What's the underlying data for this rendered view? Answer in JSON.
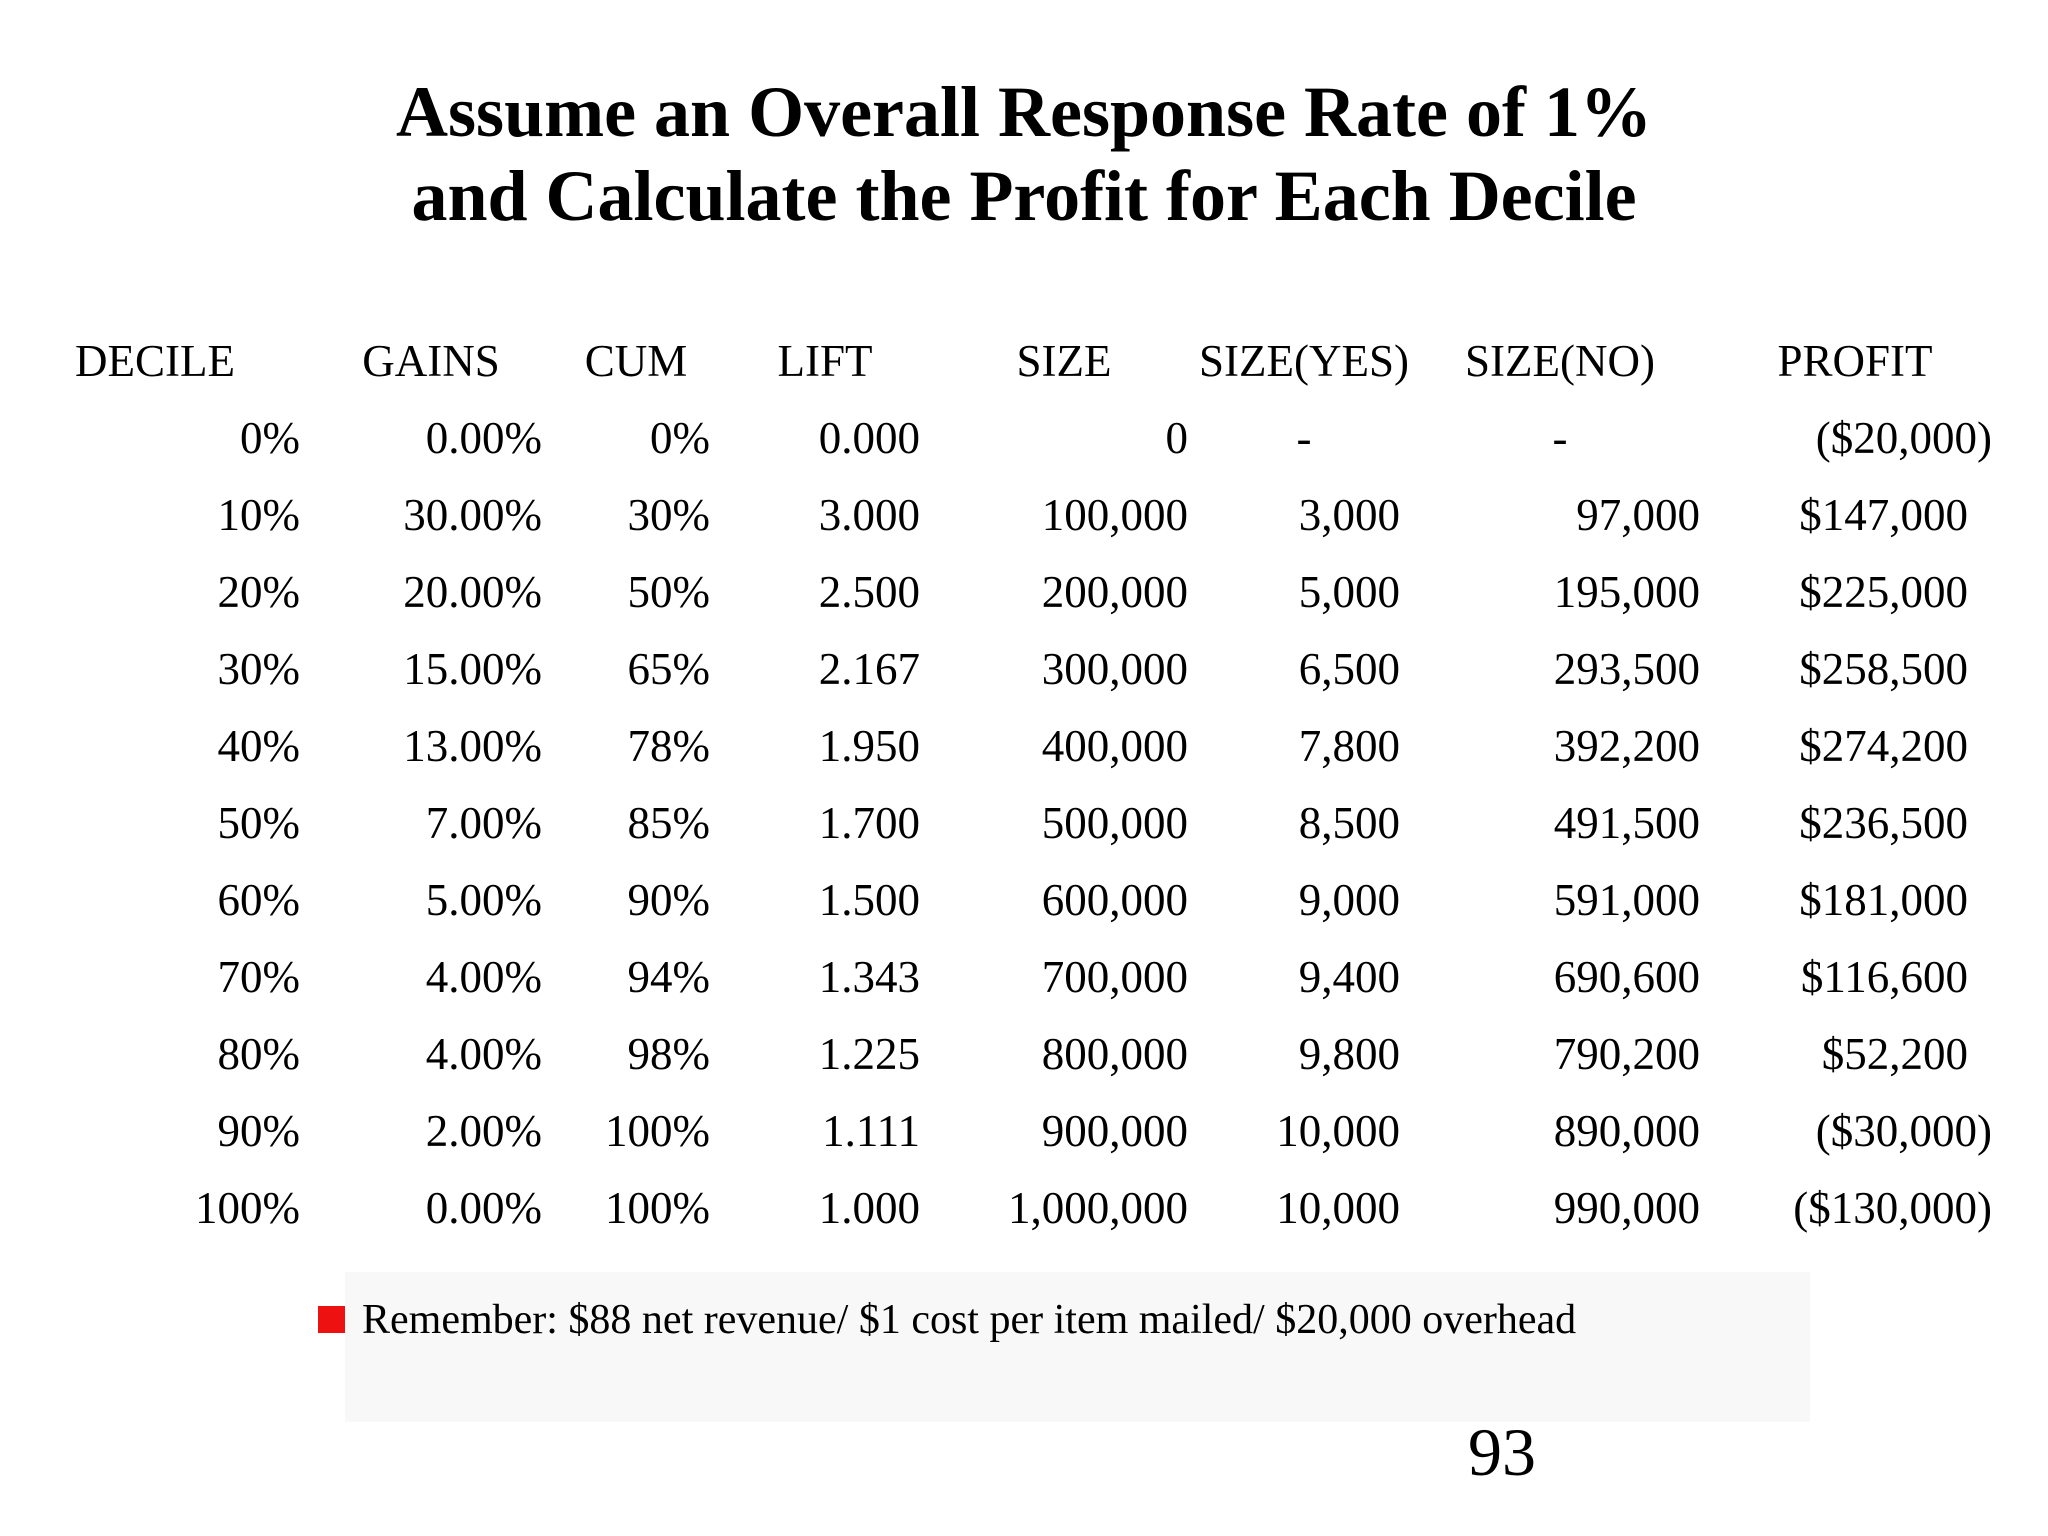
{
  "title": {
    "line1": "Assume an Overall Response Rate of 1%",
    "line2": "and Calculate the Profit for Each Decile"
  },
  "table": {
    "columns": [
      "DECILE",
      "GAINS",
      "CUM",
      "LIFT",
      "SIZE",
      "SIZE(YES)",
      "SIZE(NO)",
      "PROFIT"
    ],
    "rows": [
      [
        "0%",
        "0.00%",
        "0%",
        "0.000",
        "0",
        "-",
        "-",
        "($20,000)"
      ],
      [
        "10%",
        "30.00%",
        "30%",
        "3.000",
        "100,000",
        "3,000",
        "97,000",
        "$147,000"
      ],
      [
        "20%",
        "20.00%",
        "50%",
        "2.500",
        "200,000",
        "5,000",
        "195,000",
        "$225,000"
      ],
      [
        "30%",
        "15.00%",
        "65%",
        "2.167",
        "300,000",
        "6,500",
        "293,500",
        "$258,500"
      ],
      [
        "40%",
        "13.00%",
        "78%",
        "1.950",
        "400,000",
        "7,800",
        "392,200",
        "$274,200"
      ],
      [
        "50%",
        "7.00%",
        "85%",
        "1.700",
        "500,000",
        "8,500",
        "491,500",
        "$236,500"
      ],
      [
        "60%",
        "5.00%",
        "90%",
        "1.500",
        "600,000",
        "9,000",
        "591,000",
        "$181,000"
      ],
      [
        "70%",
        "4.00%",
        "94%",
        "1.343",
        "700,000",
        "9,400",
        "690,600",
        "$116,600"
      ],
      [
        "80%",
        "4.00%",
        "98%",
        "1.225",
        "800,000",
        "9,800",
        "790,200",
        "$52,200"
      ],
      [
        "90%",
        "2.00%",
        "100%",
        "1.111",
        "900,000",
        "10,000",
        "890,000",
        "($30,000)"
      ],
      [
        "100%",
        "0.00%",
        "100%",
        "1.000",
        "1,000,000",
        "10,000",
        "990,000",
        "($130,000)"
      ]
    ]
  },
  "footnote": {
    "bullet_color": "#ee1111",
    "text": "Remember: $88 net revenue/ $1 cost per item mailed/ $20,000 overhead"
  },
  "page_number": "93",
  "colors": {
    "text": "#000000",
    "background": "#ffffff",
    "footnote_backdrop": "#f8f8f8"
  }
}
